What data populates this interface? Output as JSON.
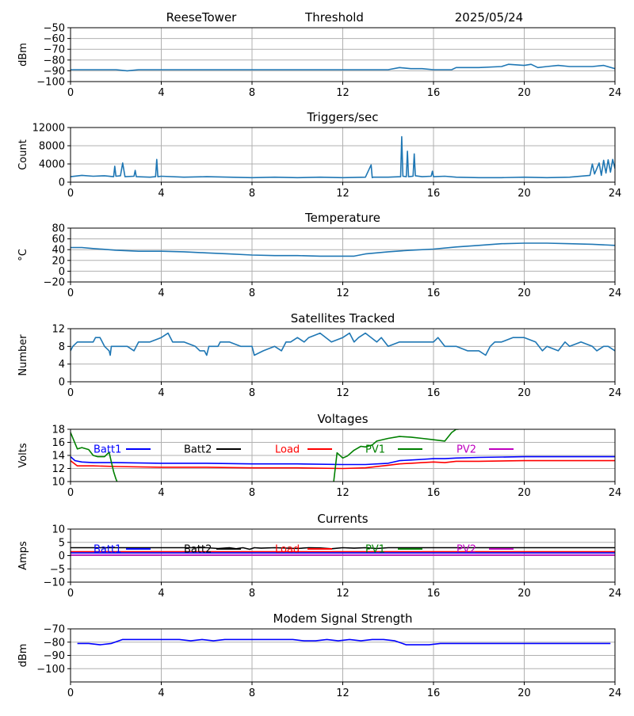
{
  "header": {
    "site": "ReeseTower",
    "label": "Threshold",
    "date": "2025/05/24"
  },
  "colors": {
    "default_line": "#1f77b4",
    "grid": "#b0b0b0",
    "batt1": "#0000ff",
    "batt2": "#000000",
    "load": "#ff0000",
    "pv1": "#008000",
    "pv2": "#bf00bf"
  },
  "chart_data": [
    {
      "id": "threshold",
      "type": "line",
      "title": "",
      "xlabel": "",
      "ylabel": "dBm",
      "xlim": [
        0,
        24
      ],
      "ylim": [
        -100,
        -50
      ],
      "xticks": [
        "0",
        "4",
        "8",
        "12",
        "16",
        "20",
        "24"
      ],
      "yticks": [
        "−100",
        "−90",
        "−80",
        "−70",
        "−60",
        "−50"
      ],
      "grid": true,
      "series": [
        {
          "color": "#1f77b4",
          "x": [
            0,
            2,
            2.5,
            3,
            4,
            6,
            8,
            10,
            12,
            13,
            14,
            14.5,
            15,
            15.5,
            16,
            16.8,
            17,
            18,
            19,
            19.3,
            20,
            20.3,
            20.6,
            21,
            21.5,
            22,
            23,
            23.5,
            24
          ],
          "y": [
            -89,
            -89,
            -90,
            -89,
            -89,
            -89,
            -89,
            -89,
            -89,
            -89,
            -89,
            -87,
            -88,
            -88,
            -89,
            -89,
            -87,
            -87,
            -86,
            -84,
            -85,
            -84,
            -87,
            -86,
            -85,
            -86,
            -86,
            -85,
            -88
          ]
        }
      ]
    },
    {
      "id": "triggers",
      "type": "line",
      "title": "Triggers/sec",
      "xlabel": "",
      "ylabel": "Count",
      "xlim": [
        0,
        24
      ],
      "ylim": [
        0,
        12000
      ],
      "xticks": [
        "0",
        "4",
        "8",
        "12",
        "16",
        "20",
        "24"
      ],
      "yticks": [
        "0",
        "4000",
        "8000",
        "12000"
      ],
      "grid": true,
      "series": [
        {
          "color": "#1f77b4",
          "x": [
            0,
            0.5,
            1,
            1.5,
            1.9,
            1.95,
            2,
            2.2,
            2.3,
            2.4,
            2.8,
            2.85,
            2.9,
            3.5,
            3.75,
            3.8,
            3.85,
            4,
            5,
            6,
            7,
            8,
            9,
            10,
            11,
            12,
            13,
            13.25,
            13.3,
            13.35,
            14,
            14.55,
            14.6,
            14.65,
            14.8,
            14.85,
            14.9,
            15.1,
            15.15,
            15.2,
            15.5,
            15.9,
            15.95,
            16,
            16.5,
            17,
            18,
            19,
            20,
            21,
            22,
            22.9,
            23,
            23.1,
            23.3,
            23.4,
            23.5,
            23.6,
            23.7,
            23.8,
            23.9,
            24
          ],
          "y": [
            1200,
            1500,
            1300,
            1400,
            1200,
            3500,
            1300,
            1400,
            4200,
            1200,
            1300,
            2600,
            1200,
            1100,
            1200,
            5000,
            1200,
            1300,
            1100,
            1200,
            1100,
            1000,
            1100,
            1000,
            1100,
            1000,
            1100,
            3800,
            1000,
            1100,
            1100,
            1200,
            10000,
            1300,
            1200,
            6800,
            1200,
            1300,
            6200,
            1400,
            1200,
            1300,
            2400,
            1200,
            1300,
            1100,
            1000,
            1000,
            1100,
            1000,
            1100,
            1500,
            4000,
            1800,
            4200,
            1500,
            4800,
            2000,
            4900,
            2200,
            5000,
            3000
          ]
        }
      ]
    },
    {
      "id": "temperature",
      "type": "line",
      "title": "Temperature",
      "xlabel": "",
      "ylabel": "°C",
      "xlim": [
        0,
        24
      ],
      "ylim": [
        -20,
        80
      ],
      "xticks": [
        "0",
        "4",
        "8",
        "12",
        "16",
        "20",
        "24"
      ],
      "yticks": [
        "−20",
        "0",
        "20",
        "40",
        "60",
        "80"
      ],
      "grid": true,
      "series": [
        {
          "color": "#1f77b4",
          "x": [
            0,
            0.5,
            1,
            2,
            3,
            4,
            5,
            6,
            7,
            8,
            9,
            10,
            11,
            12,
            12.5,
            13,
            14,
            15,
            16,
            17,
            18,
            19,
            20,
            21,
            22,
            23,
            24
          ],
          "y": [
            44,
            44,
            42,
            39,
            37,
            37,
            36,
            34,
            32,
            30,
            29,
            29,
            28,
            28,
            28,
            32,
            36,
            39,
            41,
            45,
            48,
            51,
            52,
            52,
            51,
            50,
            48
          ]
        }
      ]
    },
    {
      "id": "satellites",
      "type": "line",
      "title": "Satellites Tracked",
      "xlabel": "",
      "ylabel": "Number",
      "xlim": [
        0,
        24
      ],
      "ylim": [
        0,
        12
      ],
      "xticks": [
        "0",
        "4",
        "8",
        "12",
        "16",
        "20",
        "24"
      ],
      "yticks": [
        "0",
        "4",
        "8",
        "12"
      ],
      "grid": true,
      "series": [
        {
          "color": "#1f77b4",
          "x": [
            0,
            0.1,
            0.3,
            0.5,
            1,
            1.1,
            1.3,
            1.5,
            1.7,
            1.75,
            1.8,
            2,
            2.5,
            2.8,
            3,
            3.5,
            4,
            4.3,
            4.5,
            5,
            5.5,
            5.7,
            5.9,
            6,
            6.1,
            6.5,
            6.6,
            7,
            7.5,
            8,
            8.1,
            8.5,
            9,
            9.3,
            9.5,
            9.7,
            10,
            10.3,
            10.5,
            11,
            11.5,
            12,
            12.3,
            12.5,
            12.7,
            13,
            13.5,
            13.7,
            14,
            14.5,
            15,
            15.5,
            16,
            16.2,
            16.5,
            17,
            17.5,
            18,
            18.3,
            18.5,
            18.7,
            19,
            19.5,
            20,
            20.5,
            20.8,
            21,
            21.5,
            21.8,
            22,
            22.5,
            23,
            23.2,
            23.5,
            23.7,
            24
          ],
          "y": [
            7,
            8,
            9,
            9,
            9,
            10,
            10,
            8,
            7,
            6,
            8,
            8,
            8,
            7,
            9,
            9,
            10,
            11,
            9,
            9,
            8,
            7,
            7,
            6,
            8,
            8,
            9,
            9,
            8,
            8,
            6,
            7,
            8,
            7,
            9,
            9,
            10,
            9,
            10,
            11,
            9,
            10,
            11,
            9,
            10,
            11,
            9,
            10,
            8,
            9,
            9,
            9,
            9,
            10,
            8,
            8,
            7,
            7,
            6,
            8,
            9,
            9,
            10,
            10,
            9,
            7,
            8,
            7,
            9,
            8,
            9,
            8,
            7,
            8,
            8,
            7
          ]
        }
      ]
    },
    {
      "id": "voltages",
      "type": "line",
      "title": "Voltages",
      "xlabel": "",
      "ylabel": "Volts",
      "xlim": [
        0,
        24
      ],
      "ylim": [
        10,
        18
      ],
      "xticks": [
        "0",
        "4",
        "8",
        "12",
        "16",
        "20",
        "24"
      ],
      "yticks": [
        "10",
        "12",
        "14",
        "16",
        "18"
      ],
      "grid": true,
      "legend": [
        {
          "name": "Batt1",
          "color": "#0000ff"
        },
        {
          "name": "Batt2",
          "color": "#000000"
        },
        {
          "name": "Load",
          "color": "#ff0000"
        },
        {
          "name": "PV1",
          "color": "#008000"
        },
        {
          "name": "PV2",
          "color": "#bf00bf"
        }
      ],
      "legend_position": "top",
      "series": [
        {
          "name": "Batt1",
          "color": "#0000ff",
          "x": [
            0,
            0.2,
            0.5,
            1,
            2,
            4,
            6,
            8,
            10,
            12,
            13,
            14,
            14.5,
            15,
            15.5,
            16,
            16.5,
            17,
            18,
            20,
            22,
            24
          ],
          "y": [
            13.8,
            13.2,
            13.0,
            12.9,
            12.9,
            12.8,
            12.8,
            12.7,
            12.7,
            12.6,
            12.6,
            12.8,
            13.2,
            13.3,
            13.4,
            13.5,
            13.5,
            13.6,
            13.7,
            13.8,
            13.8,
            13.8
          ]
        },
        {
          "name": "Load",
          "color": "#ff0000",
          "x": [
            0,
            0.3,
            1,
            2,
            4,
            6,
            8,
            10,
            12,
            13,
            14,
            14.5,
            15,
            15.5,
            16,
            16.5,
            17,
            18,
            20,
            22,
            24
          ],
          "y": [
            13.2,
            12.4,
            12.4,
            12.3,
            12.2,
            12.2,
            12.1,
            12.1,
            12.0,
            12.1,
            12.5,
            12.7,
            12.8,
            12.9,
            13.0,
            12.9,
            13.1,
            13.1,
            13.2,
            13.2,
            13.2
          ]
        },
        {
          "name": "PV1",
          "color": "#008000",
          "x": [
            0,
            0.3,
            0.5,
            0.8,
            1,
            1.2,
            1.5,
            1.7,
            1.8,
            1.9,
            2.0,
            2.05
          ],
          "y": [
            17.5,
            15.0,
            15.2,
            14.9,
            14.0,
            13.8,
            13.8,
            14.5,
            13.0,
            11.5,
            10.4,
            10.0
          ]
        },
        {
          "name": "PV1",
          "color": "#008000",
          "x": [
            11.6,
            11.75,
            12,
            12.2,
            12.5,
            12.8,
            13,
            13.3,
            13.5,
            14,
            14.5,
            15,
            15.5,
            16,
            16.5,
            16.8,
            17,
            17.1
          ],
          "y": [
            10.0,
            14.4,
            13.6,
            13.9,
            14.8,
            15.4,
            15.3,
            15.6,
            16.2,
            16.6,
            16.9,
            16.8,
            16.6,
            16.4,
            16.2,
            17.5,
            18.0,
            18.0
          ]
        }
      ]
    },
    {
      "id": "currents",
      "type": "line",
      "title": "Currents",
      "xlabel": "",
      "ylabel": "Amps",
      "xlim": [
        0,
        24
      ],
      "ylim": [
        -10,
        10
      ],
      "xticks": [
        "0",
        "4",
        "8",
        "12",
        "16",
        "20",
        "24"
      ],
      "yticks": [
        "−10",
        "−5",
        "0",
        "5",
        "10"
      ],
      "grid": true,
      "legend": [
        {
          "name": "Batt1",
          "color": "#0000ff"
        },
        {
          "name": "Batt2",
          "color": "#000000"
        },
        {
          "name": "Load",
          "color": "#ff0000"
        },
        {
          "name": "PV1",
          "color": "#008000"
        },
        {
          "name": "PV2",
          "color": "#bf00bf"
        }
      ],
      "legend_position": "top",
      "series": [
        {
          "name": "Batt2",
          "color": "#000000",
          "x": [
            0,
            2,
            4,
            6,
            6.5,
            7,
            7.3,
            7.6,
            7.9,
            8.1,
            8.4,
            9,
            10,
            10.5,
            11,
            11.5,
            12,
            12.5,
            13,
            13.5,
            14,
            16,
            18,
            20,
            22,
            24
          ],
          "y": [
            3,
            3,
            3,
            3,
            2.7,
            3,
            2.6,
            3,
            2.4,
            3,
            2.8,
            3,
            2.7,
            3,
            2.9,
            2.6,
            3,
            2.8,
            3,
            2.7,
            3,
            3,
            3,
            3,
            3,
            3
          ]
        },
        {
          "name": "Load",
          "color": "#ff0000",
          "x": [
            0,
            24
          ],
          "y": [
            1.5,
            1.5
          ]
        },
        {
          "name": "Batt1",
          "color": "#0000ff",
          "x": [
            0,
            24
          ],
          "y": [
            1.0,
            1.0
          ]
        },
        {
          "name": "PV2",
          "color": "#bf00bf",
          "x": [
            0,
            24
          ],
          "y": [
            0.2,
            0.2
          ]
        }
      ]
    },
    {
      "id": "modem",
      "type": "line",
      "title": "Modem Signal Strength",
      "xlabel": "",
      "ylabel": "dBm",
      "xlim": [
        0,
        24
      ],
      "ylim": [
        -110,
        -70
      ],
      "xticks": [
        "0",
        "4",
        "8",
        "12",
        "16",
        "20",
        "24"
      ],
      "yticks": [
        "−100",
        "−90",
        "−80",
        "−70"
      ],
      "grid": true,
      "series": [
        {
          "color": "#0000ff",
          "x": [
            0.3,
            0.8,
            1.3,
            1.8,
            2.3,
            2.8,
            3.3,
            3.8,
            4.3,
            4.8,
            5.3,
            5.8,
            6.3,
            6.8,
            7.3,
            7.8,
            8.3,
            8.8,
            9.3,
            9.8,
            10.3,
            10.8,
            11.3,
            11.8,
            12.3,
            12.8,
            13.3,
            13.8,
            14.3,
            14.8,
            15.3,
            15.8,
            16.3,
            16.8,
            17.3,
            17.8,
            18.3,
            20,
            22,
            23.8
          ],
          "y": [
            -81,
            -81,
            -82,
            -81,
            -78,
            -78,
            -78,
            -78,
            -78,
            -78,
            -79,
            -78,
            -79,
            -78,
            -78,
            -78,
            -78,
            -78,
            -78,
            -78,
            -79,
            -79,
            -78,
            -79,
            -78,
            -79,
            -78,
            -78,
            -79,
            -82,
            -82,
            -82,
            -81,
            -81,
            -81,
            -81,
            -81,
            -81,
            -81,
            -81
          ]
        }
      ]
    }
  ]
}
